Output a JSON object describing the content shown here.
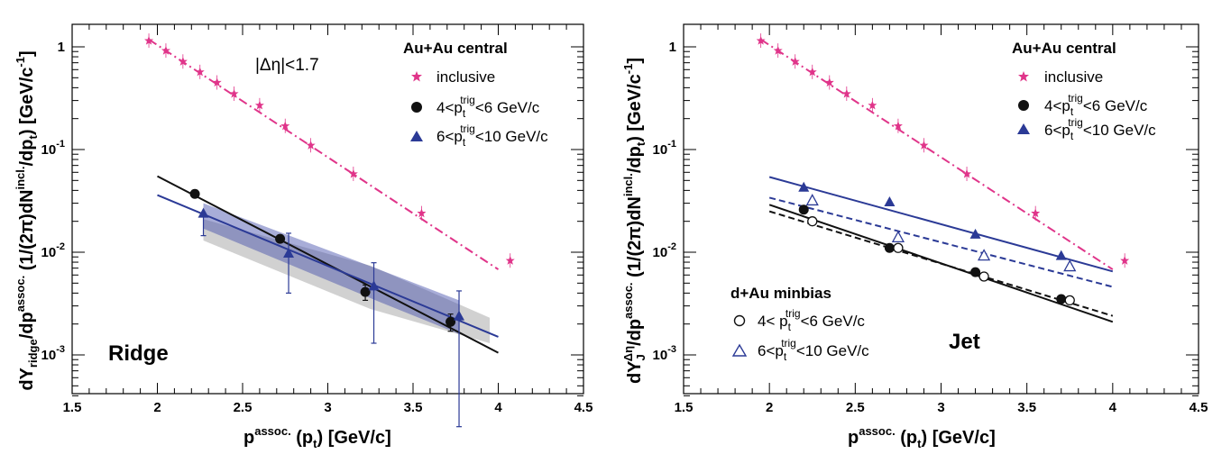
{
  "chart_data": [
    {
      "type": "scatter",
      "panel_label": "Ridge",
      "cut_label": "|Δη|<1.7",
      "xlabel": "p_t^assoc. (p_t) [GeV/c]",
      "ylabel": "dY_ridge/dp_t^assoc. (1/(2π)dN^incl./dp_t) [GeV/c^-1]",
      "xlim": [
        1.5,
        4.5
      ],
      "ylim": [
        0.0004,
        1.6
      ],
      "yscale": "log",
      "x_ticks": [
        "1.5",
        "2",
        "2.5",
        "3",
        "3.5",
        "4",
        "4.5"
      ],
      "y_ticks": [
        "10^-3",
        "10^-2",
        "10^-1",
        "1"
      ],
      "legend_title": "Au+Au central",
      "legend_position": "top-right",
      "series": [
        {
          "name": "inclusive",
          "marker": "star",
          "color": "#e0358a",
          "x": [
            1.95,
            2.05,
            2.15,
            2.25,
            2.35,
            2.45,
            2.6,
            2.75,
            2.9,
            3.15,
            3.55,
            4.07
          ],
          "y": [
            1.15,
            0.92,
            0.72,
            0.57,
            0.45,
            0.35,
            0.27,
            0.17,
            0.11,
            0.058,
            0.024,
            0.0083
          ]
        },
        {
          "name": "4<p_t^trig<6 GeV/c",
          "marker": "circle-filled",
          "color": "#111111",
          "x": [
            2.22,
            2.72,
            3.22,
            3.72
          ],
          "y": [
            0.037,
            0.0135,
            0.0041,
            0.0021
          ],
          "err": [
            0.002,
            0.001,
            0.0007,
            0.0004
          ]
        },
        {
          "name": "6<p_t^trig<10 GeV/c",
          "marker": "triangle-filled",
          "color": "#2b3a96",
          "x": [
            2.27,
            2.77,
            3.27,
            3.77
          ],
          "y": [
            0.024,
            0.0098,
            0.0047,
            0.0024
          ],
          "err_low": [
            0.0095,
            0.0058,
            0.0034,
            0.0022
          ],
          "err_high": [
            0.0,
            0.0055,
            0.0032,
            0.0018
          ]
        }
      ],
      "fits": [
        {
          "color": "#2e8ba8",
          "dash": "dashdot",
          "x": [
            1.95,
            4.0
          ],
          "y": [
            1.18,
            0.0068
          ]
        },
        {
          "color": "#111111",
          "dash": "solid",
          "x": [
            2.0,
            4.0
          ],
          "y": [
            0.055,
            0.00105
          ]
        },
        {
          "color": "#2b3a96",
          "dash": "solid",
          "x": [
            2.0,
            4.0
          ],
          "y": [
            0.036,
            0.0015
          ]
        }
      ],
      "bands": [
        {
          "color": "#8c8c8c",
          "opacity": 0.4,
          "upper_x": [
            2.27,
            3.25,
            3.95
          ],
          "upper_y": [
            0.021,
            0.0074,
            0.0023
          ],
          "lower_x": [
            2.27,
            3.25,
            3.95
          ],
          "lower_y": [
            0.013,
            0.0028,
            0.0013
          ]
        },
        {
          "color": "#3f49a8",
          "opacity": 0.45,
          "upper_x": [
            2.27,
            3.3,
            3.77
          ],
          "upper_y": [
            0.03,
            0.0068,
            0.0034
          ],
          "lower_x": [
            2.27,
            3.3,
            3.77
          ],
          "lower_y": [
            0.017,
            0.0033,
            0.0016
          ]
        }
      ]
    },
    {
      "type": "scatter",
      "panel_label": "Jet",
      "xlabel": "p_t^assoc. (p_t) [GeV/c]",
      "ylabel": "dY_J^Δη/dp_t^assoc. (1/(2π)dN^incl./dp_t) [GeV/c^-1]",
      "xlim": [
        1.5,
        4.5
      ],
      "ylim": [
        0.0004,
        1.6
      ],
      "yscale": "log",
      "x_ticks": [
        "1.5",
        "2",
        "2.5",
        "3",
        "3.5",
        "4",
        "4.5"
      ],
      "y_ticks": [
        "10^-3",
        "10^-2",
        "10^-1",
        "1"
      ],
      "legend_title": "Au+Au central",
      "legend_position": "top-right",
      "legend2_title": "d+Au minbias",
      "legend2_position": "bottom-left",
      "series": [
        {
          "name": "inclusive",
          "marker": "star",
          "color": "#e0358a",
          "x": [
            1.95,
            2.05,
            2.15,
            2.25,
            2.35,
            2.45,
            2.6,
            2.75,
            2.9,
            3.15,
            3.55,
            4.07
          ],
          "y": [
            1.15,
            0.92,
            0.72,
            0.57,
            0.45,
            0.35,
            0.27,
            0.17,
            0.11,
            0.058,
            0.024,
            0.0083
          ]
        },
        {
          "name": "4<p_t^trig<6 GeV/c",
          "marker": "circle-filled",
          "color": "#111111",
          "x": [
            2.2,
            2.7,
            3.2,
            3.7
          ],
          "y": [
            0.026,
            0.011,
            0.0064,
            0.0035
          ]
        },
        {
          "name": "6<p_t^trig<10 GeV/c",
          "marker": "triangle-filled",
          "color": "#2b3a96",
          "x": [
            2.2,
            2.7,
            3.2,
            3.7
          ],
          "y": [
            0.043,
            0.031,
            0.015,
            0.0093
          ]
        },
        {
          "name": "4< p_t^trig<6 GeV/c",
          "marker": "circle-open",
          "color": "#111111",
          "x": [
            2.25,
            2.75,
            3.25,
            3.75
          ],
          "y": [
            0.02,
            0.011,
            0.0058,
            0.0034
          ]
        },
        {
          "name": "6<p_t^trig<10 GeV/c",
          "marker": "triangle-open",
          "color": "#2b3a96",
          "x": [
            2.25,
            2.75,
            3.25,
            3.75
          ],
          "y": [
            0.032,
            0.014,
            0.0093,
            0.0073
          ]
        }
      ],
      "fits": [
        {
          "color": "#2e8ba8",
          "dash": "dashdot",
          "x": [
            1.95,
            4.0
          ],
          "y": [
            1.18,
            0.0068
          ]
        },
        {
          "color": "#2b3a96",
          "dash": "solid",
          "x": [
            2.0,
            4.0
          ],
          "y": [
            0.054,
            0.0065
          ]
        },
        {
          "color": "#2b3a96",
          "dash": "dashed",
          "x": [
            2.0,
            4.0
          ],
          "y": [
            0.034,
            0.0046
          ]
        },
        {
          "color": "#111111",
          "dash": "solid",
          "x": [
            2.0,
            4.0
          ],
          "y": [
            0.029,
            0.0021
          ]
        },
        {
          "color": "#111111",
          "dash": "dashed",
          "x": [
            2.0,
            4.0
          ],
          "y": [
            0.025,
            0.0024
          ]
        }
      ]
    }
  ]
}
